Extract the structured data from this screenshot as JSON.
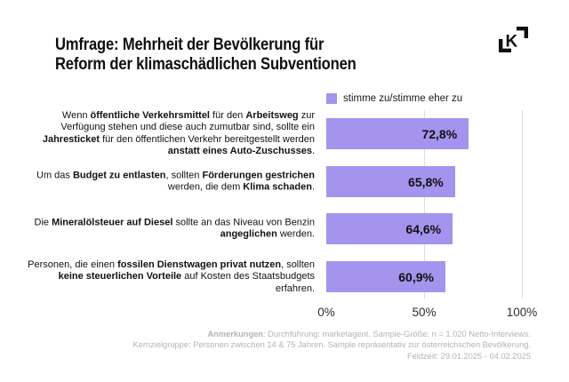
{
  "header": {
    "title_line1": "Umfrage: Mehrheit der Bevölkerung für",
    "title_line2": "Reform der klimaschädlichen Subventionen"
  },
  "colors": {
    "accent_purple": "#a494ed",
    "gridline_gray": "#dcdcdc",
    "text_primary": "#111111",
    "footnote_gray": "#b5b3b6"
  },
  "legend": {
    "label": "stimme zu/stimme eher zu"
  },
  "chart_data": {
    "type": "bar",
    "orientation": "horizontal",
    "title": "Umfrage: Mehrheit der Bevölkerung für Reform der klimaschädlichen Subventionen",
    "series_name": "stimme zu/stimme eher zu",
    "categories": [
      "Wenn öffentliche Verkehrsmittel für den Arbeitsweg zur Verfügung stehen und diese auch zumutbar sind, sollte ein Jahresticket für den öffentlichen Verkehr bereitgestellt werden anstatt eines Auto-Zuschusses.",
      "Um das Budget zu entlasten, sollten Förderungen gestrichen werden, die dem Klima schaden.",
      "Die Mineralölsteuer auf Diesel sollte an das Niveau von Benzin angeglichen werden.",
      "Personen, die einen fossilen Dienstwagen privat nutzen, sollten keine steuerlichen Vorteile auf Kosten des Staatsbudgets erfahren."
    ],
    "values": [
      72.8,
      65.8,
      64.6,
      60.9
    ],
    "value_labels": [
      "72,8%",
      "65,8%",
      "64,6%",
      "60,9%"
    ],
    "xlim": [
      0,
      100
    ],
    "x_ticks": [
      {
        "label": "0%",
        "value": 0,
        "gridline": false
      },
      {
        "label": "50%",
        "value": 50,
        "gridline": true
      },
      {
        "label": "100%",
        "value": 100,
        "gridline": true
      }
    ],
    "legend_position": "top-right-of-plot",
    "grid": "vertical",
    "bar_color": "#a494ed"
  },
  "rows": [
    {
      "value": 72.8,
      "value_label": "72,8%",
      "segments": [
        {
          "t": "Wenn ",
          "b": false
        },
        {
          "t": "öffentliche Verkehrsmittel",
          "b": true
        },
        {
          "t": " für den ",
          "b": false
        },
        {
          "t": "Arbeitsweg",
          "b": true
        },
        {
          "t": " zur Verfügung stehen und diese auch zumutbar sind, sollte ein ",
          "b": false
        },
        {
          "t": "Jahresticket",
          "b": true
        },
        {
          "t": " für den öffentlichen Verkehr bereitgestellt werden ",
          "b": false
        },
        {
          "t": "anstatt eines Auto-Zuschusses",
          "b": true
        },
        {
          "t": ".",
          "b": false
        }
      ]
    },
    {
      "value": 65.8,
      "value_label": "65,8%",
      "segments": [
        {
          "t": "Um das ",
          "b": false
        },
        {
          "t": "Budget zu entlasten",
          "b": true
        },
        {
          "t": ", sollten ",
          "b": false
        },
        {
          "t": "Förderungen gestrichen",
          "b": true
        },
        {
          "t": " werden, die dem ",
          "b": false
        },
        {
          "t": "Klima schaden",
          "b": true
        },
        {
          "t": ".",
          "b": false
        }
      ]
    },
    {
      "value": 64.6,
      "value_label": "64,6%",
      "segments": [
        {
          "t": "Die ",
          "b": false
        },
        {
          "t": "Mineralölsteuer auf Diesel",
          "b": true
        },
        {
          "t": " sollte an das Niveau von Benzin ",
          "b": false
        },
        {
          "t": "angeglichen",
          "b": true
        },
        {
          "t": " werden.",
          "b": false
        }
      ]
    },
    {
      "value": 60.9,
      "value_label": "60,9%",
      "segments": [
        {
          "t": "Personen, die einen ",
          "b": false
        },
        {
          "t": "fossilen Dienstwagen privat nutzen",
          "b": true
        },
        {
          "t": ", sollten ",
          "b": false
        },
        {
          "t": "keine steuerlichen Vorteile",
          "b": true
        },
        {
          "t": " auf Kosten des Staatsbudgets erfahren.",
          "b": false
        }
      ]
    }
  ],
  "footnote": {
    "label": "Anmerkungen",
    "line1_rest": ": Durchführung: marketagent. Sample-Größe: n = 1.020 Netto-Interviews.",
    "line2": "Kernzielgruppe: Personen zwischen 14 & 75 Jahren. Sample repräsentativ zur österreichschen Bevölkerung.",
    "line3": "Feldzeit: 29.01.2025 - 04.02.2025"
  }
}
